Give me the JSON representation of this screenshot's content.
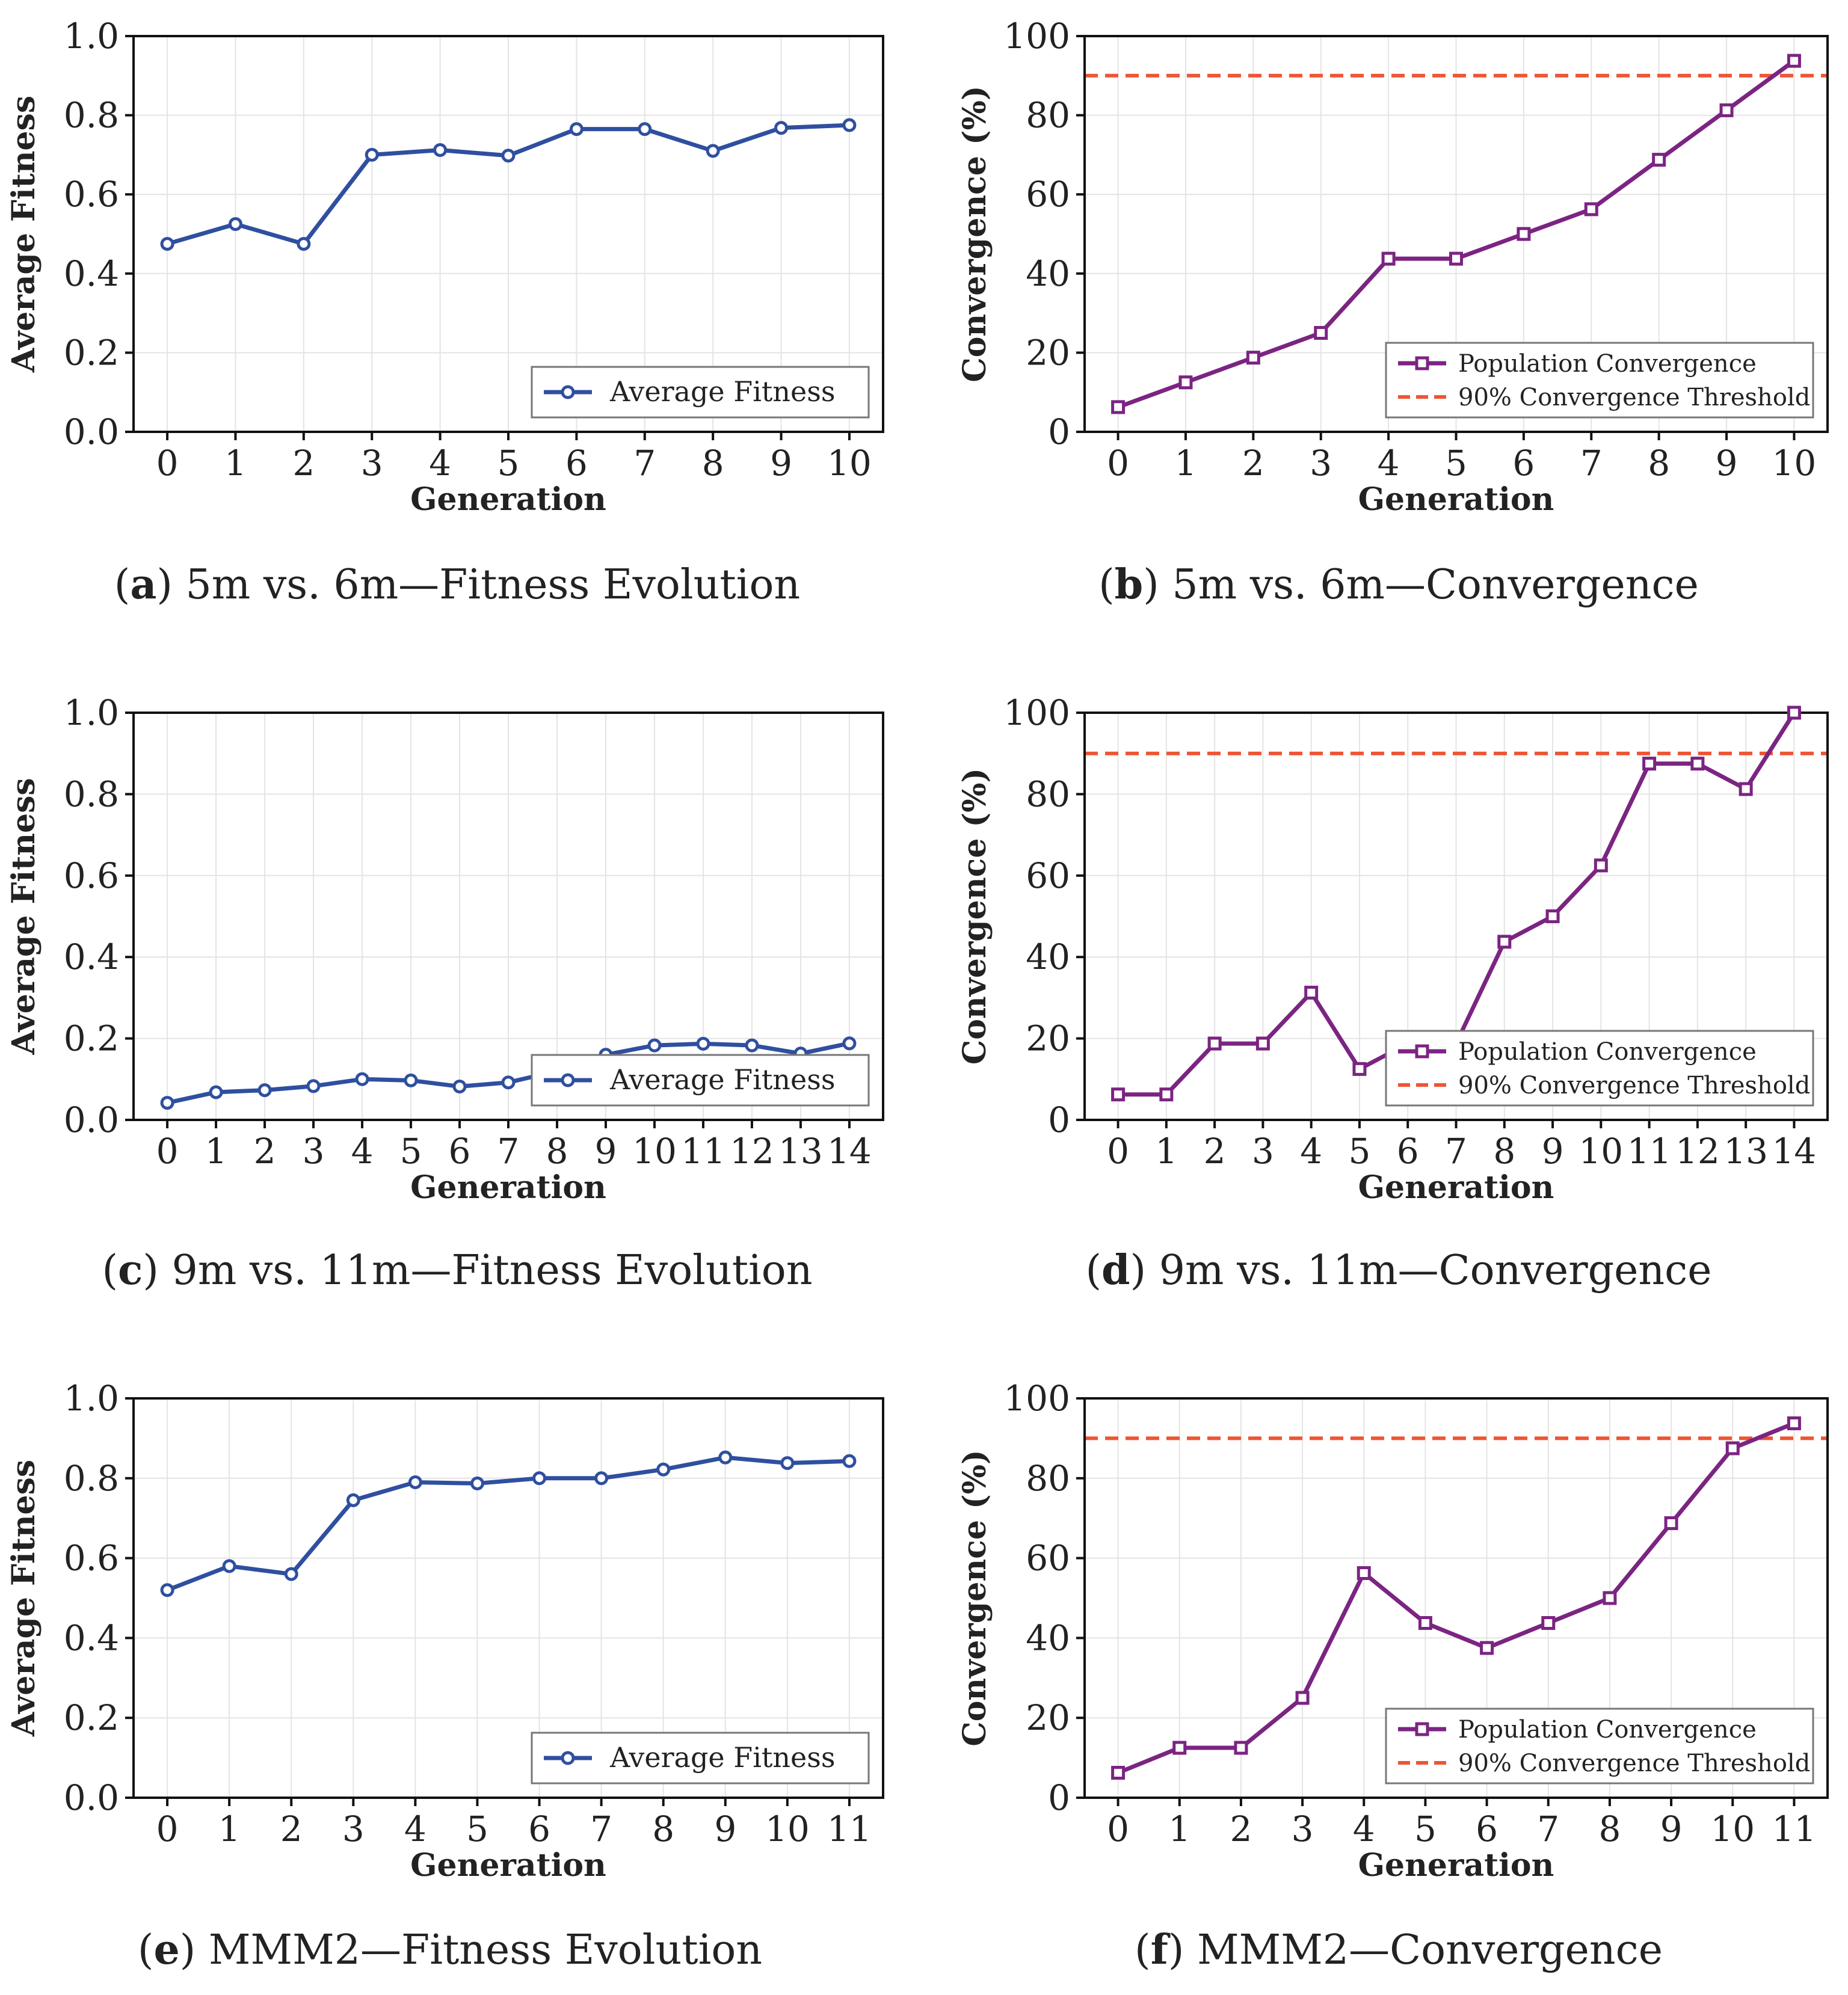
{
  "colors": {
    "fitness_line": "#2f4f9f",
    "convergence_line": "#7b2482",
    "threshold_line": "#ee5533",
    "grid": "#e4e4e4",
    "axis": "#111111"
  },
  "icons": {
    "fitness_marker": "circle-marker-icon",
    "convergence_marker": "square-marker-icon"
  },
  "chart_data": [
    {
      "id": "a",
      "type": "line",
      "caption_letter": "a",
      "caption_text": " 5m vs. 6m—Fitness Evolution",
      "xlabel": "Generation",
      "ylabel": "Average Fitness",
      "ylim": [
        0,
        1
      ],
      "yticks": [
        "0.0",
        "0.2",
        "0.4",
        "0.6",
        "0.8",
        "1.0"
      ],
      "x": [
        0,
        1,
        2,
        3,
        4,
        5,
        6,
        7,
        8,
        9,
        10
      ],
      "series": [
        {
          "name": "Average Fitness",
          "values": [
            0.475,
            0.525,
            0.475,
            0.7,
            0.712,
            0.698,
            0.765,
            0.765,
            0.71,
            0.768,
            0.775
          ]
        }
      ],
      "legend": [
        "Average Fitness"
      ],
      "legend_position": "lower-right",
      "grid": true
    },
    {
      "id": "b",
      "type": "line",
      "caption_letter": "b",
      "caption_text": " 5m vs. 6m—Convergence",
      "xlabel": "Generation",
      "ylabel": "Convergence (%)",
      "ylim": [
        0,
        100
      ],
      "yticks": [
        "0",
        "20",
        "40",
        "60",
        "80",
        "100"
      ],
      "x": [
        0,
        1,
        2,
        3,
        4,
        5,
        6,
        7,
        8,
        9,
        10
      ],
      "series": [
        {
          "name": "Population Convergence",
          "values": [
            6.25,
            12.5,
            18.75,
            25,
            43.75,
            43.75,
            50,
            56.25,
            68.75,
            81.25,
            93.75
          ]
        }
      ],
      "threshold": {
        "name": "90% Convergence Threshold",
        "value": 90
      },
      "legend": [
        "Population Convergence",
        "90% Convergence Threshold"
      ],
      "legend_position": "lower-right",
      "grid": true
    },
    {
      "id": "c",
      "type": "line",
      "caption_letter": "c",
      "caption_text": " 9m vs. 11m—Fitness Evolution",
      "xlabel": "Generation",
      "ylabel": "Average Fitness",
      "ylim": [
        0,
        1
      ],
      "yticks": [
        "0.0",
        "0.2",
        "0.4",
        "0.6",
        "0.8",
        "1.0"
      ],
      "x": [
        0,
        1,
        2,
        3,
        4,
        5,
        6,
        7,
        8,
        9,
        10,
        11,
        12,
        13,
        14
      ],
      "series": [
        {
          "name": "Average Fitness",
          "values": [
            0.042,
            0.068,
            0.073,
            0.083,
            0.1,
            0.097,
            0.082,
            0.092,
            0.12,
            0.16,
            0.183,
            0.187,
            0.183,
            0.163,
            0.188
          ]
        }
      ],
      "legend": [
        "Average Fitness"
      ],
      "legend_position": "lower-right",
      "grid": true
    },
    {
      "id": "d",
      "type": "line",
      "caption_letter": "d",
      "caption_text": " 9m vs. 11m—Convergence",
      "xlabel": "Generation",
      "ylabel": "Convergence (%)",
      "ylim": [
        0,
        100
      ],
      "yticks": [
        "0",
        "20",
        "40",
        "60",
        "80",
        "100"
      ],
      "x": [
        0,
        1,
        2,
        3,
        4,
        5,
        6,
        7,
        8,
        9,
        10,
        11,
        12,
        13,
        14
      ],
      "series": [
        {
          "name": "Population Convergence",
          "values": [
            6.25,
            6.25,
            18.75,
            18.75,
            31.25,
            12.5,
            18.75,
            18.75,
            43.75,
            50,
            62.5,
            87.5,
            87.5,
            81.25,
            100
          ]
        }
      ],
      "threshold": {
        "name": "90% Convergence Threshold",
        "value": 90
      },
      "legend": [
        "Population Convergence",
        "90% Convergence Threshold"
      ],
      "legend_position": "lower-right",
      "grid": true
    },
    {
      "id": "e",
      "type": "line",
      "caption_letter": "e",
      "caption_text": " MMM2—Fitness Evolution",
      "xlabel": "Generation",
      "ylabel": "Average Fitness",
      "ylim": [
        0,
        1
      ],
      "yticks": [
        "0.0",
        "0.2",
        "0.4",
        "0.6",
        "0.8",
        "1.0"
      ],
      "x": [
        0,
        1,
        2,
        3,
        4,
        5,
        6,
        7,
        8,
        9,
        10,
        11
      ],
      "series": [
        {
          "name": "Average Fitness",
          "values": [
            0.52,
            0.58,
            0.56,
            0.745,
            0.79,
            0.787,
            0.8,
            0.8,
            0.822,
            0.852,
            0.838,
            0.843
          ]
        }
      ],
      "legend": [
        "Average Fitness"
      ],
      "legend_position": "lower-right",
      "grid": true
    },
    {
      "id": "f",
      "type": "line",
      "caption_letter": "f",
      "caption_text": " MMM2—Convergence",
      "xlabel": "Generation",
      "ylabel": "Convergence (%)",
      "ylim": [
        0,
        100
      ],
      "yticks": [
        "0",
        "20",
        "40",
        "60",
        "80",
        "100"
      ],
      "x": [
        0,
        1,
        2,
        3,
        4,
        5,
        6,
        7,
        8,
        9,
        10,
        11
      ],
      "series": [
        {
          "name": "Population Convergence",
          "values": [
            6.25,
            12.5,
            12.5,
            25,
            56.25,
            43.75,
            37.5,
            43.75,
            50,
            68.75,
            87.5,
            93.75
          ]
        }
      ],
      "threshold": {
        "name": "90% Convergence Threshold",
        "value": 90
      },
      "legend": [
        "Population Convergence",
        "90% Convergence Threshold"
      ],
      "legend_position": "lower-right",
      "grid": true
    }
  ]
}
